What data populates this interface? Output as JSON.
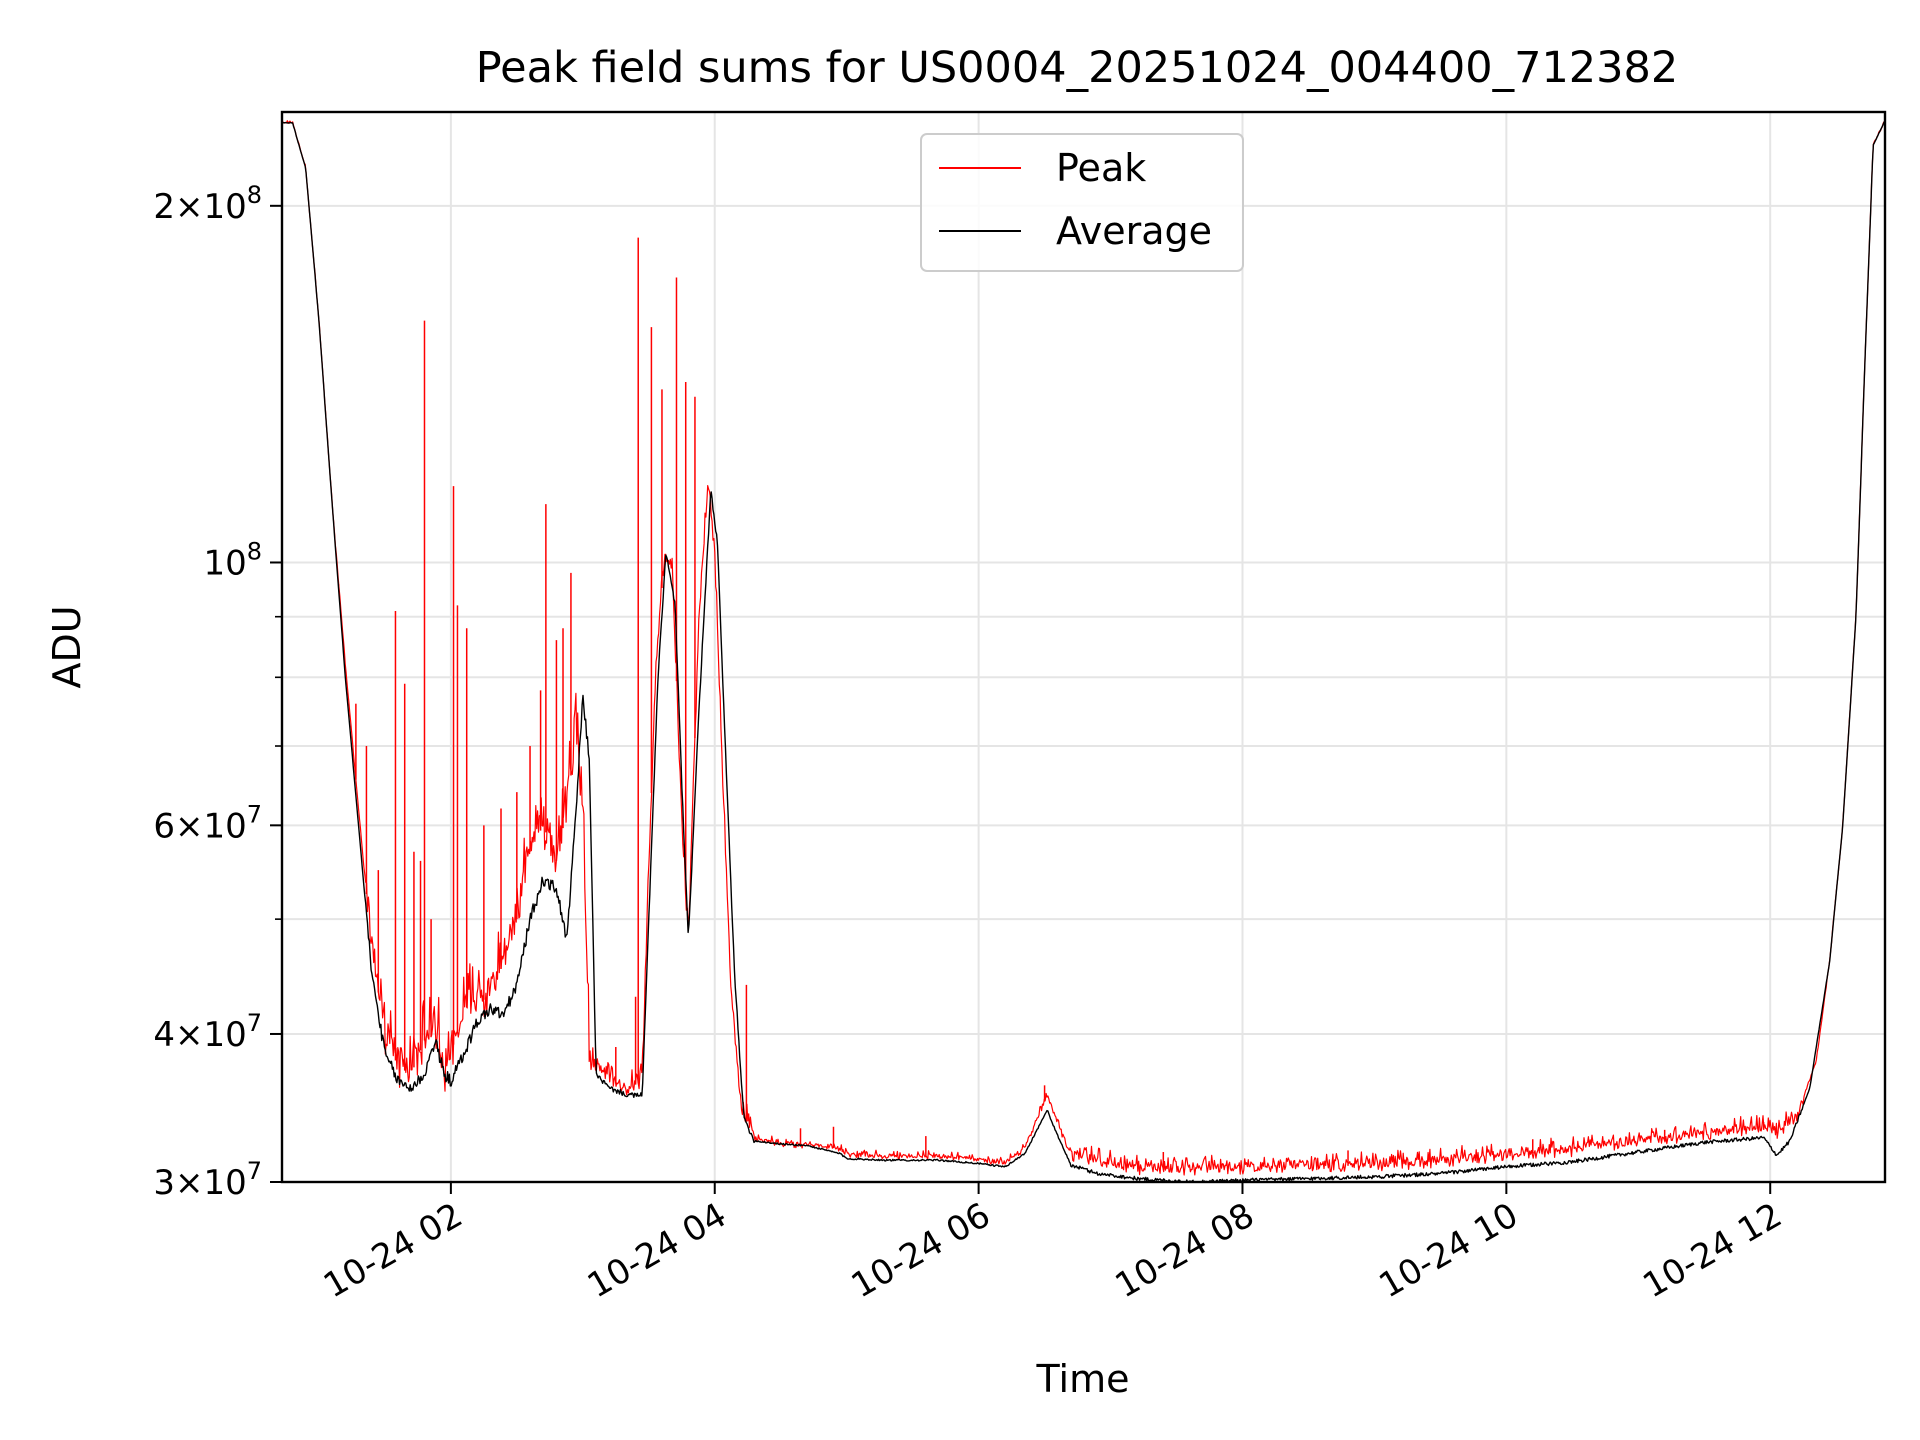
{
  "chart_data": {
    "type": "line",
    "title": "Peak field sums for US0004_20251024_004400_712382",
    "xlabel": "Time",
    "ylabel": "ADU",
    "yscale": "log",
    "xlim": [
      0.72,
      12.87
    ],
    "ylim": [
      30000000,
      240000000
    ],
    "grid": true,
    "legend_position": "top-center",
    "x_ticks": [
      {
        "value": 2,
        "label": "10-24 02"
      },
      {
        "value": 4,
        "label": "10-24 04"
      },
      {
        "value": 6,
        "label": "10-24 06"
      },
      {
        "value": 8,
        "label": "10-24 08"
      },
      {
        "value": 10,
        "label": "10-24 10"
      },
      {
        "value": 12,
        "label": "10-24 12"
      }
    ],
    "y_major_ticks": [
      {
        "value": 30000000,
        "mant": "3",
        "exp": "7",
        "show_mant": true
      },
      {
        "value": 40000000,
        "mant": "4",
        "exp": "7",
        "show_mant": true
      },
      {
        "value": 60000000,
        "mant": "6",
        "exp": "7",
        "show_mant": true
      },
      {
        "value": 100000000,
        "mant": "",
        "exp": "8",
        "show_mant": false
      },
      {
        "value": 200000000,
        "mant": "2",
        "exp": "8",
        "show_mant": true
      }
    ],
    "y_minor_ticks": [
      50000000,
      70000000,
      80000000,
      90000000
    ],
    "series": [
      {
        "name": "Peak",
        "color": "#ff0000",
        "points": [
          [
            0.72,
            235000000
          ],
          [
            0.8,
            235000000
          ],
          [
            0.9,
            215000000
          ],
          [
            1.0,
            160000000
          ],
          [
            1.1,
            112000000
          ],
          [
            1.2,
            82000000
          ],
          [
            1.3,
            62000000
          ],
          [
            1.4,
            47000000
          ],
          [
            1.5,
            40000000
          ],
          [
            1.6,
            37500000
          ],
          [
            1.7,
            37000000
          ],
          [
            1.8,
            39500000
          ],
          [
            1.9,
            40000000
          ],
          [
            1.95,
            37000000
          ],
          [
            2.0,
            38500000
          ],
          [
            2.1,
            42000000
          ],
          [
            2.2,
            42500000
          ],
          [
            2.3,
            43000000
          ],
          [
            2.4,
            46000000
          ],
          [
            2.5,
            50000000
          ],
          [
            2.6,
            57000000
          ],
          [
            2.7,
            60000000
          ],
          [
            2.8,
            56000000
          ],
          [
            2.88,
            62000000
          ],
          [
            2.95,
            72000000
          ],
          [
            3.0,
            62000000
          ],
          [
            3.05,
            38000000
          ],
          [
            3.2,
            36500000
          ],
          [
            3.35,
            36000000
          ],
          [
            3.45,
            36500000
          ],
          [
            3.5,
            55000000
          ],
          [
            3.55,
            80000000
          ],
          [
            3.62,
            102000000
          ],
          [
            3.68,
            98000000
          ],
          [
            3.75,
            60000000
          ],
          [
            3.8,
            48000000
          ],
          [
            3.88,
            90000000
          ],
          [
            3.95,
            116000000
          ],
          [
            4.0,
            102000000
          ],
          [
            4.05,
            70000000
          ],
          [
            4.12,
            44000000
          ],
          [
            4.2,
            34500000
          ],
          [
            4.3,
            32600000
          ],
          [
            4.5,
            32300000
          ],
          [
            4.7,
            32200000
          ],
          [
            4.95,
            32000000
          ],
          [
            5.0,
            31600000
          ],
          [
            5.3,
            31500000
          ],
          [
            5.7,
            31500000
          ],
          [
            6.0,
            31300000
          ],
          [
            6.2,
            31100000
          ],
          [
            6.35,
            32000000
          ],
          [
            6.52,
            35500000
          ],
          [
            6.6,
            33500000
          ],
          [
            6.7,
            31600000
          ],
          [
            6.9,
            31200000
          ],
          [
            7.2,
            30800000
          ],
          [
            7.6,
            30700000
          ],
          [
            8.0,
            30800000
          ],
          [
            8.5,
            30900000
          ],
          [
            9.0,
            31000000
          ],
          [
            9.5,
            31200000
          ],
          [
            10.0,
            31600000
          ],
          [
            10.5,
            31900000
          ],
          [
            11.0,
            32400000
          ],
          [
            11.5,
            32900000
          ],
          [
            11.9,
            33300000
          ],
          [
            12.05,
            33000000
          ],
          [
            12.2,
            34000000
          ],
          [
            12.35,
            38000000
          ],
          [
            12.45,
            46000000
          ],
          [
            12.55,
            60000000
          ],
          [
            12.65,
            90000000
          ],
          [
            12.72,
            150000000
          ],
          [
            12.78,
            225000000
          ],
          [
            12.87,
            236000000
          ]
        ],
        "spikes": [
          [
            1.15,
            95000000
          ],
          [
            1.28,
            76000000
          ],
          [
            1.36,
            70000000
          ],
          [
            1.45,
            55000000
          ],
          [
            1.58,
            91000000
          ],
          [
            1.65,
            79000000
          ],
          [
            1.72,
            57000000
          ],
          [
            1.77,
            56000000
          ],
          [
            1.8,
            160000000
          ],
          [
            1.85,
            50000000
          ],
          [
            2.02,
            116000000
          ],
          [
            2.05,
            92000000
          ],
          [
            2.12,
            88000000
          ],
          [
            2.25,
            60000000
          ],
          [
            2.38,
            62000000
          ],
          [
            2.5,
            64000000
          ],
          [
            2.6,
            70000000
          ],
          [
            2.68,
            78000000
          ],
          [
            2.72,
            112000000
          ],
          [
            2.8,
            86000000
          ],
          [
            2.85,
            88000000
          ],
          [
            2.91,
            98000000
          ],
          [
            3.25,
            39000000
          ],
          [
            3.4,
            43000000
          ],
          [
            3.42,
            188000000
          ],
          [
            3.52,
            158000000
          ],
          [
            3.6,
            140000000
          ],
          [
            3.71,
            174000000
          ],
          [
            3.78,
            142000000
          ],
          [
            3.85,
            138000000
          ],
          [
            4.24,
            44000000
          ],
          [
            4.65,
            33300000
          ],
          [
            4.9,
            33400000
          ],
          [
            5.6,
            32800000
          ],
          [
            6.5,
            36200000
          ],
          [
            7.4,
            31800000
          ],
          [
            8.8,
            31900000
          ],
          [
            10.2,
            32600000
          ],
          [
            11.2,
            33200000
          ],
          [
            11.95,
            33700000
          ]
        ]
      },
      {
        "name": "Average",
        "color": "#000000",
        "points": [
          [
            0.72,
            235000000
          ],
          [
            0.8,
            235000000
          ],
          [
            0.9,
            215000000
          ],
          [
            1.0,
            160000000
          ],
          [
            1.1,
            112000000
          ],
          [
            1.2,
            80000000
          ],
          [
            1.3,
            60000000
          ],
          [
            1.4,
            45000000
          ],
          [
            1.5,
            38500000
          ],
          [
            1.6,
            36500000
          ],
          [
            1.7,
            36000000
          ],
          [
            1.8,
            37000000
          ],
          [
            1.88,
            39500000
          ],
          [
            1.95,
            37000000
          ],
          [
            2.0,
            36500000
          ],
          [
            2.1,
            38500000
          ],
          [
            2.2,
            41000000
          ],
          [
            2.3,
            42000000
          ],
          [
            2.4,
            41500000
          ],
          [
            2.5,
            44000000
          ],
          [
            2.6,
            50000000
          ],
          [
            2.7,
            54000000
          ],
          [
            2.8,
            53000000
          ],
          [
            2.88,
            48000000
          ],
          [
            2.95,
            62000000
          ],
          [
            3.0,
            77000000
          ],
          [
            3.05,
            68000000
          ],
          [
            3.1,
            37000000
          ],
          [
            3.2,
            36000000
          ],
          [
            3.35,
            35500000
          ],
          [
            3.45,
            35500000
          ],
          [
            3.5,
            50000000
          ],
          [
            3.57,
            80000000
          ],
          [
            3.63,
            102000000
          ],
          [
            3.7,
            92000000
          ],
          [
            3.75,
            65000000
          ],
          [
            3.8,
            48000000
          ],
          [
            3.88,
            75000000
          ],
          [
            3.97,
            115000000
          ],
          [
            4.02,
            104000000
          ],
          [
            4.08,
            70000000
          ],
          [
            4.15,
            45000000
          ],
          [
            4.22,
            34000000
          ],
          [
            4.3,
            32500000
          ],
          [
            4.5,
            32300000
          ],
          [
            4.7,
            32200000
          ],
          [
            4.95,
            31700000
          ],
          [
            5.0,
            31400000
          ],
          [
            5.3,
            31300000
          ],
          [
            5.7,
            31300000
          ],
          [
            6.0,
            31100000
          ],
          [
            6.2,
            30900000
          ],
          [
            6.35,
            31700000
          ],
          [
            6.52,
            34500000
          ],
          [
            6.6,
            32800000
          ],
          [
            6.7,
            31000000
          ],
          [
            6.9,
            30500000
          ],
          [
            7.2,
            30200000
          ],
          [
            7.6,
            30000000
          ],
          [
            8.0,
            30100000
          ],
          [
            8.5,
            30200000
          ],
          [
            9.0,
            30300000
          ],
          [
            9.5,
            30500000
          ],
          [
            10.0,
            30900000
          ],
          [
            10.5,
            31200000
          ],
          [
            11.0,
            31800000
          ],
          [
            11.5,
            32400000
          ],
          [
            11.95,
            32700000
          ],
          [
            12.05,
            31600000
          ],
          [
            12.15,
            32500000
          ],
          [
            12.3,
            36000000
          ],
          [
            12.45,
            46000000
          ],
          [
            12.55,
            60000000
          ],
          [
            12.65,
            90000000
          ],
          [
            12.72,
            150000000
          ],
          [
            12.78,
            225000000
          ],
          [
            12.87,
            236000000
          ]
        ]
      }
    ]
  }
}
